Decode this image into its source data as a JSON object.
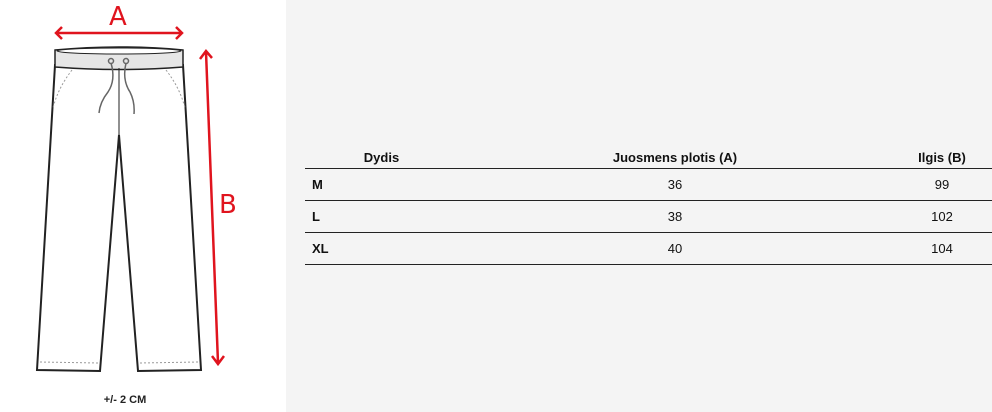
{
  "diagram": {
    "label_a": "A",
    "label_b": "B",
    "tolerance": "+/-  2 CM",
    "arrow_color": "#e0141e"
  },
  "table": {
    "headers": [
      "Dydis",
      "Juosmens plotis (A)",
      "Ilgis (B)"
    ],
    "rows": [
      {
        "size": "M",
        "waist": "36",
        "length": "99"
      },
      {
        "size": "L",
        "waist": "38",
        "length": "102"
      },
      {
        "size": "XL",
        "waist": "40",
        "length": "104"
      }
    ]
  }
}
